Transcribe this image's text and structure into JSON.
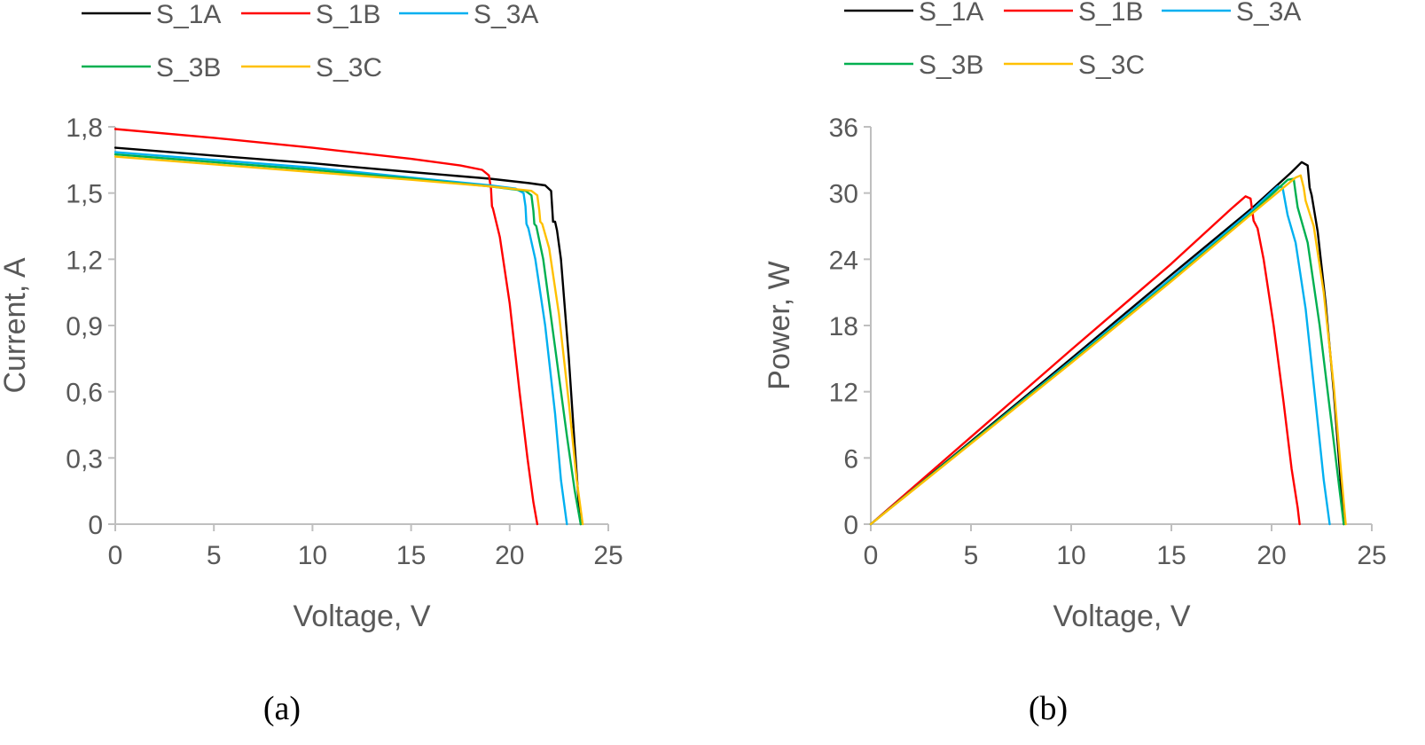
{
  "colors": {
    "S_1A": "#000000",
    "S_1B": "#ff0000",
    "S_3A": "#00b0f0",
    "S_3B": "#00b050",
    "S_3C": "#ffc000",
    "axis": "#bfbfbf",
    "text": "#595959"
  },
  "chart_data": [
    {
      "type": "line",
      "caption": "(a)",
      "title": "",
      "xlabel": "Voltage,  V",
      "ylabel": "Current,  A",
      "xlim": [
        0,
        25
      ],
      "ylim": [
        0,
        1.8
      ],
      "x_ticks": [
        "0",
        "5",
        "10",
        "15",
        "20",
        "25"
      ],
      "y_ticks": [
        "0",
        "0,3",
        "0,6",
        "0,9",
        "1,2",
        "1,5",
        "1,8"
      ],
      "grid": false,
      "legend_position": "top",
      "legend": [
        "S_1A",
        "S_1B",
        "S_3A",
        "S_3B",
        "S_3C"
      ],
      "series": [
        {
          "name": "S_1A",
          "points": [
            [
              0,
              1.705
            ],
            [
              5,
              1.67
            ],
            [
              10,
              1.635
            ],
            [
              15,
              1.595
            ],
            [
              19,
              1.565
            ],
            [
              21,
              1.545
            ],
            [
              21.8,
              1.535
            ],
            [
              22.1,
              1.51
            ],
            [
              22.15,
              1.44
            ],
            [
              22.2,
              1.37
            ],
            [
              22.3,
              1.37
            ],
            [
              22.4,
              1.33
            ],
            [
              22.6,
              1.2
            ],
            [
              23.0,
              0.75
            ],
            [
              23.3,
              0.35
            ],
            [
              23.5,
              0.1
            ],
            [
              23.6,
              0.0
            ]
          ]
        },
        {
          "name": "S_1B",
          "points": [
            [
              0,
              1.79
            ],
            [
              5,
              1.75
            ],
            [
              10,
              1.705
            ],
            [
              15,
              1.655
            ],
            [
              17.5,
              1.625
            ],
            [
              18.6,
              1.605
            ],
            [
              18.95,
              1.58
            ],
            [
              19.05,
              1.52
            ],
            [
              19.1,
              1.44
            ],
            [
              19.15,
              1.43
            ],
            [
              19.5,
              1.3
            ],
            [
              20.0,
              1.0
            ],
            [
              20.5,
              0.6
            ],
            [
              20.9,
              0.3
            ],
            [
              21.2,
              0.1
            ],
            [
              21.4,
              0.0
            ]
          ]
        },
        {
          "name": "S_3A",
          "points": [
            [
              0,
              1.685
            ],
            [
              5,
              1.65
            ],
            [
              10,
              1.615
            ],
            [
              15,
              1.57
            ],
            [
              19,
              1.535
            ],
            [
              20.3,
              1.52
            ],
            [
              20.7,
              1.5
            ],
            [
              20.8,
              1.44
            ],
            [
              20.85,
              1.36
            ],
            [
              20.95,
              1.34
            ],
            [
              21.3,
              1.2
            ],
            [
              21.8,
              0.9
            ],
            [
              22.3,
              0.5
            ],
            [
              22.6,
              0.2
            ],
            [
              22.9,
              0.0
            ]
          ]
        },
        {
          "name": "S_3B",
          "points": [
            [
              0,
              1.675
            ],
            [
              5,
              1.64
            ],
            [
              10,
              1.605
            ],
            [
              15,
              1.565
            ],
            [
              19,
              1.53
            ],
            [
              20.8,
              1.51
            ],
            [
              21.1,
              1.49
            ],
            [
              21.2,
              1.42
            ],
            [
              21.25,
              1.36
            ],
            [
              21.35,
              1.35
            ],
            [
              21.7,
              1.2
            ],
            [
              22.3,
              0.8
            ],
            [
              22.9,
              0.4
            ],
            [
              23.3,
              0.15
            ],
            [
              23.6,
              0.0
            ]
          ]
        },
        {
          "name": "S_3C",
          "points": [
            [
              0,
              1.665
            ],
            [
              5,
              1.63
            ],
            [
              10,
              1.595
            ],
            [
              15,
              1.56
            ],
            [
              19,
              1.53
            ],
            [
              21.1,
              1.51
            ],
            [
              21.4,
              1.49
            ],
            [
              21.5,
              1.42
            ],
            [
              21.55,
              1.37
            ],
            [
              21.65,
              1.36
            ],
            [
              22.0,
              1.25
            ],
            [
              22.5,
              0.95
            ],
            [
              23.0,
              0.55
            ],
            [
              23.4,
              0.2
            ],
            [
              23.7,
              0.0
            ]
          ]
        }
      ]
    },
    {
      "type": "line",
      "caption": "(b)",
      "title": "",
      "xlabel": "Voltage,  V",
      "ylabel": "Power,  W",
      "xlim": [
        0,
        25
      ],
      "ylim": [
        0,
        36
      ],
      "x_ticks": [
        "0",
        "5",
        "10",
        "15",
        "20",
        "25"
      ],
      "y_ticks": [
        "0",
        "6",
        "12",
        "18",
        "24",
        "30",
        "36"
      ],
      "grid": false,
      "legend_position": "top",
      "legend": [
        "S_1A",
        "S_1B",
        "S_3A",
        "S_3B",
        "S_3C"
      ],
      "series": [
        {
          "name": "S_1A",
          "points": [
            [
              0,
              0
            ],
            [
              5,
              7.5
            ],
            [
              10,
              15.0
            ],
            [
              15,
              22.6
            ],
            [
              19,
              28.6
            ],
            [
              21.0,
              31.9
            ],
            [
              21.5,
              32.8
            ],
            [
              21.8,
              32.5
            ],
            [
              21.9,
              30.5
            ],
            [
              22.0,
              29.8
            ],
            [
              22.3,
              26.5
            ],
            [
              22.7,
              20.0
            ],
            [
              23.1,
              12.0
            ],
            [
              23.4,
              5.0
            ],
            [
              23.6,
              0.0
            ]
          ]
        },
        {
          "name": "S_1B",
          "points": [
            [
              0,
              0
            ],
            [
              5,
              7.9
            ],
            [
              10,
              15.8
            ],
            [
              15,
              23.6
            ],
            [
              18.0,
              28.6
            ],
            [
              18.7,
              29.7
            ],
            [
              18.95,
              29.5
            ],
            [
              19.1,
              27.5
            ],
            [
              19.3,
              26.8
            ],
            [
              19.6,
              24.0
            ],
            [
              20.1,
              18.0
            ],
            [
              20.6,
              11.0
            ],
            [
              21.0,
              5.0
            ],
            [
              21.3,
              1.5
            ],
            [
              21.4,
              0.0
            ]
          ]
        },
        {
          "name": "S_3A",
          "points": [
            [
              0,
              0
            ],
            [
              5,
              7.4
            ],
            [
              10,
              14.8
            ],
            [
              15,
              22.3
            ],
            [
              19,
              28.4
            ],
            [
              20.3,
              30.6
            ],
            [
              20.55,
              30.5
            ],
            [
              20.7,
              29.0
            ],
            [
              20.8,
              28.0
            ],
            [
              21.2,
              25.5
            ],
            [
              21.7,
              19.5
            ],
            [
              22.2,
              11.0
            ],
            [
              22.6,
              4.0
            ],
            [
              22.9,
              0.0
            ]
          ]
        },
        {
          "name": "S_3B",
          "points": [
            [
              0,
              0
            ],
            [
              5,
              7.4
            ],
            [
              10,
              14.7
            ],
            [
              15,
              22.1
            ],
            [
              19,
              28.2
            ],
            [
              20.8,
              31.2
            ],
            [
              21.1,
              31.3
            ],
            [
              21.2,
              30.0
            ],
            [
              21.3,
              28.7
            ],
            [
              21.8,
              25.5
            ],
            [
              22.4,
              18.0
            ],
            [
              23.0,
              9.0
            ],
            [
              23.4,
              3.0
            ],
            [
              23.6,
              0.0
            ]
          ]
        },
        {
          "name": "S_3C",
          "points": [
            [
              0,
              0
            ],
            [
              5,
              7.3
            ],
            [
              10,
              14.6
            ],
            [
              15,
              22.0
            ],
            [
              19,
              28.1
            ],
            [
              21.2,
              31.4
            ],
            [
              21.45,
              31.6
            ],
            [
              21.6,
              30.5
            ],
            [
              21.7,
              29.3
            ],
            [
              22.1,
              27.0
            ],
            [
              22.6,
              21.0
            ],
            [
              23.1,
              12.5
            ],
            [
              23.5,
              4.0
            ],
            [
              23.7,
              0.0
            ]
          ]
        }
      ]
    }
  ]
}
